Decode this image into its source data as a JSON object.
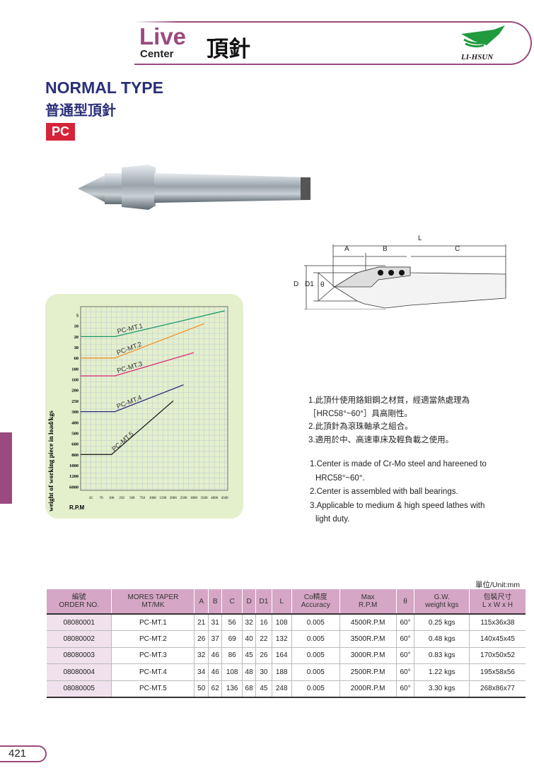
{
  "header": {
    "title_en_1": "Live",
    "title_en_2": "Center",
    "title_cn": "頂針",
    "brand": "LI-HSUN",
    "brand_color": "#1f9a3c",
    "accent": "#9a4a7e"
  },
  "section": {
    "title": "NORMAL TYPE",
    "title_cn": "普通型頂針",
    "badge": "PC",
    "badge_color": "#d5243a"
  },
  "diagram": {
    "labels": [
      "L",
      "A",
      "B",
      "C",
      "D",
      "D1",
      "θ"
    ]
  },
  "chart_data": {
    "type": "line",
    "ylabel": "weight of working piece in load/kgs",
    "xlabel": "R.P.M",
    "x_ticks": [
      "45",
      "70",
      "100",
      "250",
      "500",
      "750",
      "1000",
      "1500",
      "2000",
      "2500",
      "3000",
      "3500",
      "4000",
      "4500"
    ],
    "y_ticks": [
      "5",
      "10",
      "20",
      "30",
      "60",
      "100",
      "160",
      "200",
      "250",
      "300",
      "400",
      "500",
      "600",
      "800",
      "1000",
      "1200",
      "6000"
    ],
    "grid": true,
    "series": [
      {
        "name": "PC-MT.1",
        "color": "#16966a",
        "points": [
          [
            0,
            20
          ],
          [
            150,
            20
          ],
          [
            4500,
            3
          ]
        ]
      },
      {
        "name": "PC-MT.2",
        "color": "#f0922a",
        "points": [
          [
            0,
            60
          ],
          [
            150,
            60
          ],
          [
            3500,
            9
          ]
        ]
      },
      {
        "name": "PC-MT.3",
        "color": "#e0287a",
        "points": [
          [
            0,
            140
          ],
          [
            150,
            140
          ],
          [
            3000,
            45
          ]
        ]
      },
      {
        "name": "PC-MT.4",
        "color": "#2a2a78",
        "points": [
          [
            0,
            300
          ],
          [
            150,
            300
          ],
          [
            2500,
            180
          ]
        ]
      },
      {
        "name": "PC-MT.5",
        "color": "#222222",
        "points": [
          [
            0,
            800
          ],
          [
            100,
            800
          ],
          [
            2000,
            250
          ]
        ]
      }
    ]
  },
  "notes_cn": [
    "1.此頂什使用鉻鉬鋼之材質，經適當熱處理為",
    "［HRC58°~60°］具高剛性。",
    "2.此頂針為滾珠軸承之組合。",
    "3.適用於中、高速車床及輕負載之使用。"
  ],
  "notes_en": [
    "1.Center is made of Cr-Mo steel and hareened to",
    "HRC58°~60°.",
    "2.Center is assembled with ball bearings.",
    "3.Applicable to medium & high speed lathes with",
    "light duty."
  ],
  "table": {
    "unit": "單位/Unit:mm",
    "headers": [
      [
        "編號",
        "ORDER NO."
      ],
      [
        "MORES TAPER",
        "MT/MK"
      ],
      [
        "A",
        ""
      ],
      [
        "B",
        ""
      ],
      [
        "C",
        ""
      ],
      [
        "D",
        ""
      ],
      [
        "D1",
        ""
      ],
      [
        "L",
        ""
      ],
      [
        "Co精度",
        "Accuracy"
      ],
      [
        "Max",
        "R.P.M"
      ],
      [
        "θ",
        ""
      ],
      [
        "G.W.",
        "weight kgs"
      ],
      [
        "包裝尺寸",
        "L x W x H"
      ]
    ],
    "rows": [
      [
        "08080001",
        "PC-MT.1",
        "21",
        "31",
        "56",
        "32",
        "16",
        "108",
        "0.005",
        "4500R.P.M",
        "60°",
        "0.25 kgs",
        "115x36x38"
      ],
      [
        "08080002",
        "PC-MT.2",
        "26",
        "37",
        "69",
        "40",
        "22",
        "132",
        "0.005",
        "3500R.P.M",
        "60°",
        "0.48 kgs",
        "140x45x45"
      ],
      [
        "08080003",
        "PC-MT.3",
        "32",
        "46",
        "86",
        "45",
        "26",
        "164",
        "0.005",
        "3000R.P.M",
        "60°",
        "0.83 kgs",
        "170x50x52"
      ],
      [
        "08080004",
        "PC-MT.4",
        "34",
        "46",
        "108",
        "48",
        "30",
        "188",
        "0.005",
        "2500R.P.M",
        "60°",
        "1.22 kgs",
        "195x58x56"
      ],
      [
        "08080005",
        "PC-MT.5",
        "50",
        "62",
        "136",
        "68",
        "45",
        "248",
        "0.005",
        "2000R.P.M",
        "60°",
        "3.30 kgs",
        "268x86x77"
      ]
    ]
  },
  "page_number": "421"
}
